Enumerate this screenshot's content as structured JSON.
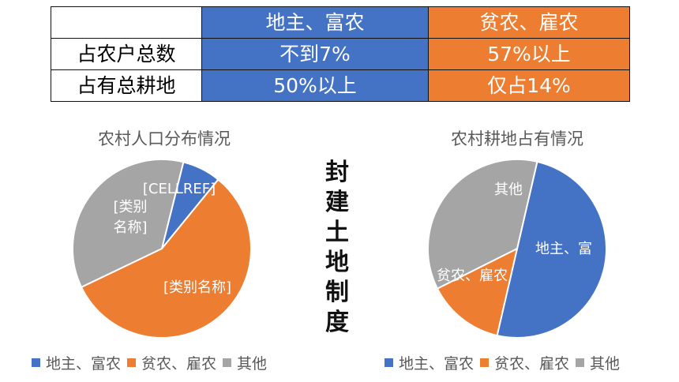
{
  "table": {
    "header": [
      "",
      "地主、富农",
      "贫农、雇农"
    ],
    "rows": [
      {
        "label": "占农户总数",
        "values": [
          "不到7%",
          "57%以上"
        ]
      },
      {
        "label": "占有总耕地",
        "values": [
          "50%以上",
          "仅占14%"
        ]
      }
    ]
  },
  "vertical_title": [
    "封",
    "建",
    "土",
    "地",
    "制",
    "度"
  ],
  "colors": {
    "blue": "#4472C4",
    "orange": "#ED7D31",
    "gray": "#A5A5A5"
  },
  "chart_data": [
    {
      "type": "pie",
      "title": "农村人口分布情况",
      "categories": [
        "地主、富农",
        "贫农、雇农",
        "其他"
      ],
      "values": [
        7,
        57,
        36
      ],
      "slice_labels": [
        "[CELLREF]",
        "[类别名称]",
        "[类别 名称]"
      ],
      "legend": "bottom"
    },
    {
      "type": "pie",
      "title": "农村耕地占有情况",
      "categories": [
        "地主、富农",
        "贫农、雇农",
        "其他"
      ],
      "values": [
        50,
        14,
        36
      ],
      "slice_labels": [
        "地主、富",
        "贫农、雇农",
        "其他"
      ],
      "legend": "bottom"
    }
  ]
}
